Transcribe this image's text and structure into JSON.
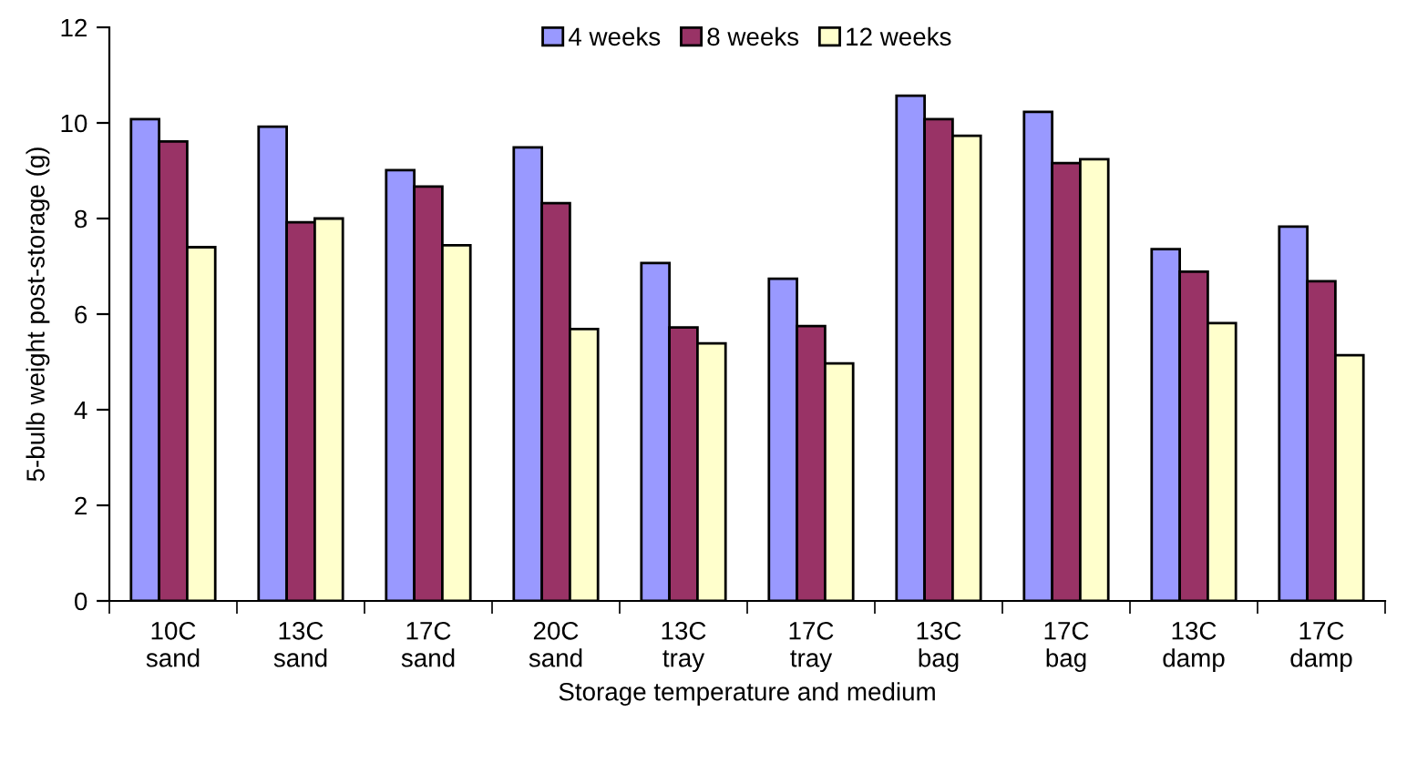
{
  "chart_data": {
    "type": "bar",
    "xlabel": "Storage temperature and medium",
    "ylabel": "5-bulb weight post-storage (g)",
    "categories": [
      "10C\nsand",
      "13C\nsand",
      "17C\nsand",
      "20C\nsand",
      "13C\ntray",
      "17C\ntray",
      "13C\nbag",
      "17C\nbag",
      "13C\ndamp",
      "17C\ndamp"
    ],
    "series": [
      {
        "name": "4 weeks",
        "color": "#9999ff",
        "values": [
          10.08,
          9.92,
          9.01,
          9.49,
          7.07,
          6.74,
          10.57,
          10.23,
          7.36,
          7.83
        ]
      },
      {
        "name": "8 weeks",
        "color": "#993366",
        "values": [
          9.61,
          7.92,
          8.67,
          8.32,
          5.72,
          5.75,
          10.08,
          9.16,
          6.89,
          6.69
        ]
      },
      {
        "name": "12 weeks",
        "color": "#ffffcc",
        "values": [
          7.4,
          8.0,
          7.44,
          5.69,
          5.39,
          4.97,
          9.73,
          9.24,
          5.81,
          5.14
        ]
      }
    ],
    "ylim": [
      0,
      12
    ],
    "yticks": [
      0,
      2,
      4,
      6,
      8,
      10,
      12
    ],
    "grid": false,
    "legend": "top"
  }
}
